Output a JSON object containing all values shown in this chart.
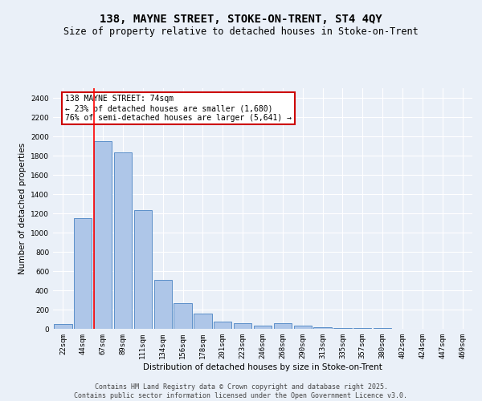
{
  "title1": "138, MAYNE STREET, STOKE-ON-TRENT, ST4 4QY",
  "title2": "Size of property relative to detached houses in Stoke-on-Trent",
  "xlabel": "Distribution of detached houses by size in Stoke-on-Trent",
  "ylabel": "Number of detached properties",
  "categories": [
    "22sqm",
    "44sqm",
    "67sqm",
    "89sqm",
    "111sqm",
    "134sqm",
    "156sqm",
    "178sqm",
    "201sqm",
    "223sqm",
    "246sqm",
    "268sqm",
    "290sqm",
    "313sqm",
    "335sqm",
    "357sqm",
    "380sqm",
    "402sqm",
    "424sqm",
    "447sqm",
    "469sqm"
  ],
  "values": [
    50,
    1150,
    1950,
    1830,
    1230,
    510,
    270,
    160,
    75,
    55,
    30,
    55,
    30,
    20,
    5,
    5,
    5,
    2,
    2,
    2,
    2
  ],
  "bar_color": "#aec6e8",
  "bar_edge_color": "#5b8fc9",
  "background_color": "#eaf0f8",
  "grid_color": "#ffffff",
  "red_line_index": 2,
  "annotation_line1": "138 MAYNE STREET: 74sqm",
  "annotation_line2": "← 23% of detached houses are smaller (1,680)",
  "annotation_line3": "76% of semi-detached houses are larger (5,641) →",
  "annotation_box_color": "#ffffff",
  "annotation_box_edge_color": "#cc0000",
  "ylim": [
    0,
    2500
  ],
  "yticks": [
    0,
    200,
    400,
    600,
    800,
    1000,
    1200,
    1400,
    1600,
    1800,
    2000,
    2200,
    2400
  ],
  "footer1": "Contains HM Land Registry data © Crown copyright and database right 2025.",
  "footer2": "Contains public sector information licensed under the Open Government Licence v3.0.",
  "title_fontsize": 10,
  "subtitle_fontsize": 8.5,
  "axis_label_fontsize": 7.5,
  "tick_fontsize": 6.5,
  "annotation_fontsize": 7,
  "footer_fontsize": 6
}
